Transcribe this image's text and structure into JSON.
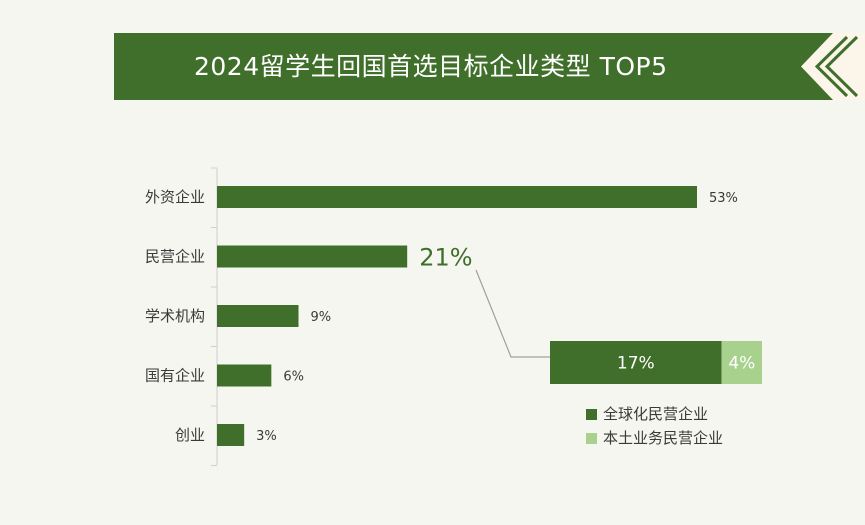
{
  "title": "2024留学生回国首选目标企业类型 TOP5",
  "colors": {
    "primary": "#3f6f2a",
    "light": "#a9d18e",
    "background": "#f5f6f0",
    "axis": "#cfcfcf",
    "connector": "#a0a0a0"
  },
  "chart_data": {
    "type": "bar",
    "orientation": "horizontal",
    "categories": [
      "外资企业",
      "民营企业",
      "学术机构",
      "国有企业",
      "创业"
    ],
    "values": [
      53,
      21,
      9,
      6,
      3
    ],
    "value_labels": [
      "53%",
      "21%",
      "9%",
      "6%",
      "3%"
    ],
    "unit": "%",
    "breakdown": {
      "of_category": "民营企业",
      "segments": [
        {
          "name": "全球化民营企业",
          "value": 17,
          "label": "17%",
          "color": "#3f6f2a"
        },
        {
          "name": "本土业务民营企业",
          "value": 4,
          "label": "4%",
          "color": "#a9d18e"
        }
      ]
    },
    "legend": [
      "全球化民营企业",
      "本土业务民营企业"
    ],
    "legend_position": "bottom-right",
    "grid": false
  }
}
